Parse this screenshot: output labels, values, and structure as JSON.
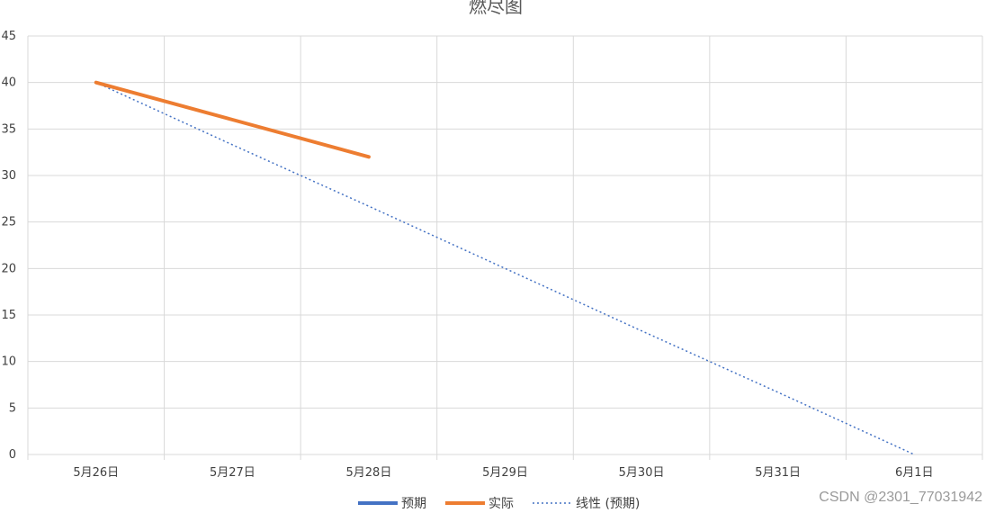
{
  "chart_data": {
    "type": "line",
    "title": "燃尽图",
    "categories": [
      "5月26日",
      "5月27日",
      "5月28日",
      "5月29日",
      "5月30日",
      "5月31日",
      "6月1日"
    ],
    "ylim": [
      0,
      45
    ],
    "yticks": [
      0,
      5,
      10,
      15,
      20,
      25,
      30,
      35,
      40,
      45
    ],
    "grid": true,
    "legend_position": "bottom",
    "series": [
      {
        "name": "预期",
        "values": [
          40,
          null,
          null,
          null,
          null,
          null,
          null
        ],
        "color": "#4472C4",
        "style": "solid"
      },
      {
        "name": "实际",
        "values": [
          40,
          36,
          32,
          null,
          null,
          null,
          null
        ],
        "color": "#ED7D31",
        "style": "solid"
      }
    ],
    "trendline": {
      "name": "线性 (预期)",
      "values": [
        40,
        33.3,
        26.7,
        20,
        13.3,
        6.7,
        0
      ],
      "color": "#4472C4",
      "style": "dotted"
    }
  },
  "watermark": "CSDN @2301_77031942"
}
